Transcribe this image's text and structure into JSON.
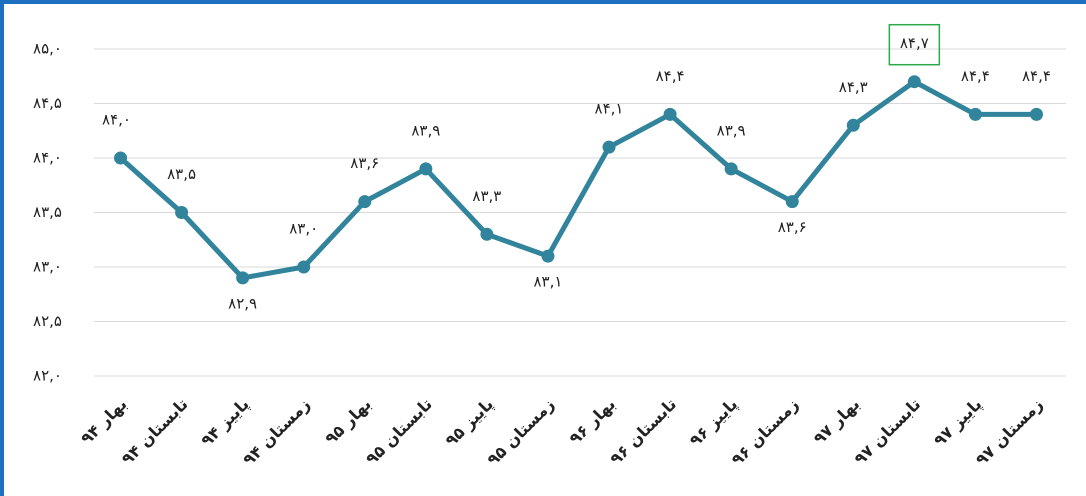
{
  "chart_data": {
    "type": "line",
    "categories": [
      "بهار ۹۴",
      "تابستان ۹۴",
      "پاییز ۹۴",
      "زمستان ۹۴",
      "بهار ۹۵",
      "تابستان ۹۵",
      "پاییز ۹۵",
      "زمستان ۹۵",
      "بهار ۹۶",
      "تابستان ۹۶",
      "پاییز ۹۶",
      "زمستان ۹۶",
      "بهار ۹۷",
      "تابستان ۹۷",
      "پاییز ۹۷",
      "زمستان ۹۷"
    ],
    "series": [
      {
        "name": "",
        "color": "#31849b",
        "values": [
          84.0,
          83.5,
          82.9,
          83.0,
          83.6,
          83.9,
          83.3,
          83.1,
          84.1,
          84.4,
          83.9,
          83.6,
          84.3,
          84.7,
          84.4,
          84.4
        ],
        "value_labels": [
          "۸۴,۰",
          "۸۳,۵",
          "۸۲,۹",
          "۸۳,۰",
          "۸۳,۶",
          "۸۳,۹",
          "۸۳,۳",
          "۸۳,۱",
          "۸۴,۱",
          "۸۴,۴",
          "۸۳,۹",
          "۸۳,۶",
          "۸۴,۳",
          "۸۴,۷",
          "۸۴,۴",
          "۸۴,۴"
        ]
      }
    ],
    "ylim": [
      82.0,
      85.0
    ],
    "yticks": [
      {
        "value": 82.0,
        "label": "۸۲,۰"
      },
      {
        "value": 82.5,
        "label": "۸۲,۵"
      },
      {
        "value": 83.0,
        "label": "۸۳,۰"
      },
      {
        "value": 83.5,
        "label": "۸۳,۵"
      },
      {
        "value": 84.0,
        "label": "۸۴,۰"
      },
      {
        "value": 84.5,
        "label": "۸۴,۵"
      },
      {
        "value": 85.0,
        "label": "۸۵,۰"
      }
    ],
    "grid": true
  }
}
